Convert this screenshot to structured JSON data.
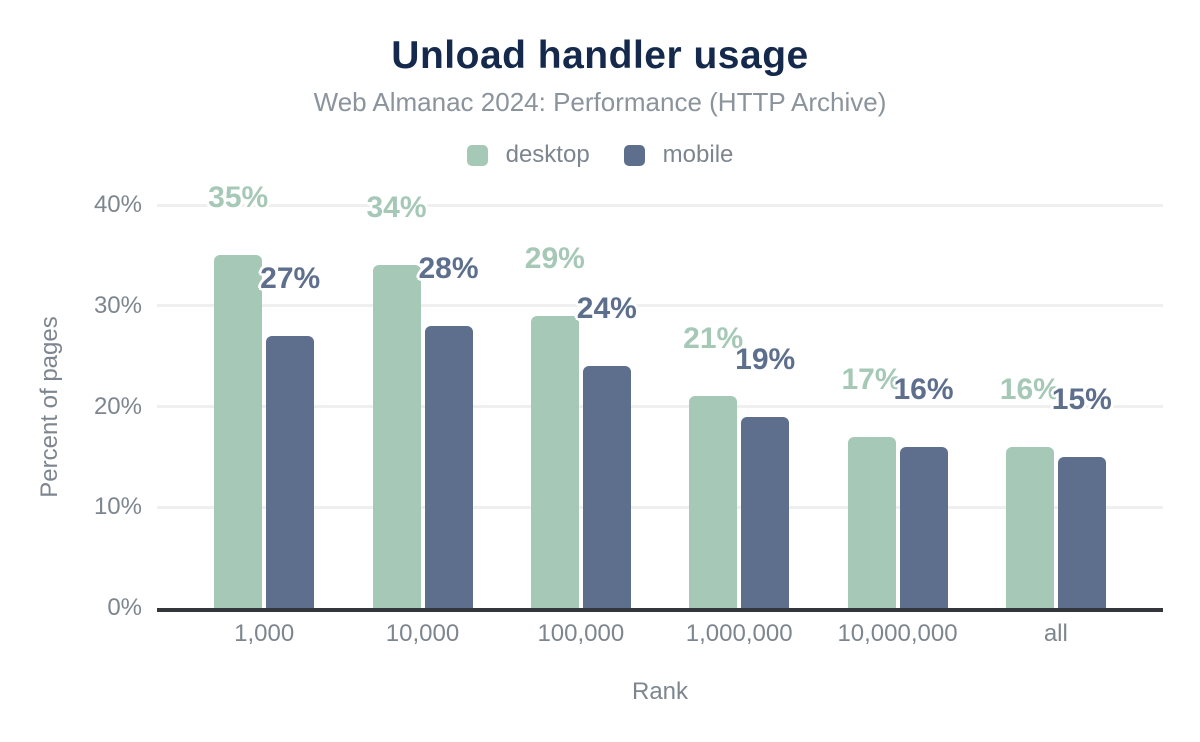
{
  "title": "Unload handler usage",
  "subtitle": "Web Almanac 2024: Performance (HTTP Archive)",
  "colors": {
    "title": "#14294b",
    "muted_text": "#7d868f",
    "desktop": "#a6c8b7",
    "mobile": "#5e6f8d",
    "gridline": "#efefef",
    "axis_line": "#33373c",
    "background": "#ffffff"
  },
  "legend": [
    {
      "label": "desktop",
      "color": "#a6c8b7"
    },
    {
      "label": "mobile",
      "color": "#5e6f8d"
    }
  ],
  "chart_data": {
    "type": "bar",
    "categories": [
      "1,000",
      "10,000",
      "100,000",
      "1,000,000",
      "10,000,000",
      "all"
    ],
    "series": [
      {
        "name": "desktop",
        "color": "#a6c8b7",
        "values": [
          35,
          34,
          29,
          21,
          17,
          16
        ],
        "labels": [
          "35%",
          "34%",
          "29%",
          "21%",
          "17%",
          "16%"
        ]
      },
      {
        "name": "mobile",
        "color": "#5e6f8d",
        "values": [
          27,
          28,
          24,
          19,
          16,
          15
        ],
        "labels": [
          "27%",
          "28%",
          "24%",
          "19%",
          "16%",
          "15%"
        ]
      }
    ],
    "title": "Unload handler usage",
    "subtitle": "Web Almanac 2024: Performance (HTTP Archive)",
    "xlabel": "Rank",
    "ylabel": "Percent of pages",
    "ylim": [
      0,
      40
    ],
    "yticks": [
      {
        "label": "0%",
        "value": 0
      },
      {
        "label": "10%",
        "value": 10
      },
      {
        "label": "20%",
        "value": 20
      },
      {
        "label": "30%",
        "value": 30
      },
      {
        "label": "40%",
        "value": 40
      }
    ],
    "grid": true,
    "legend_position": "top"
  }
}
